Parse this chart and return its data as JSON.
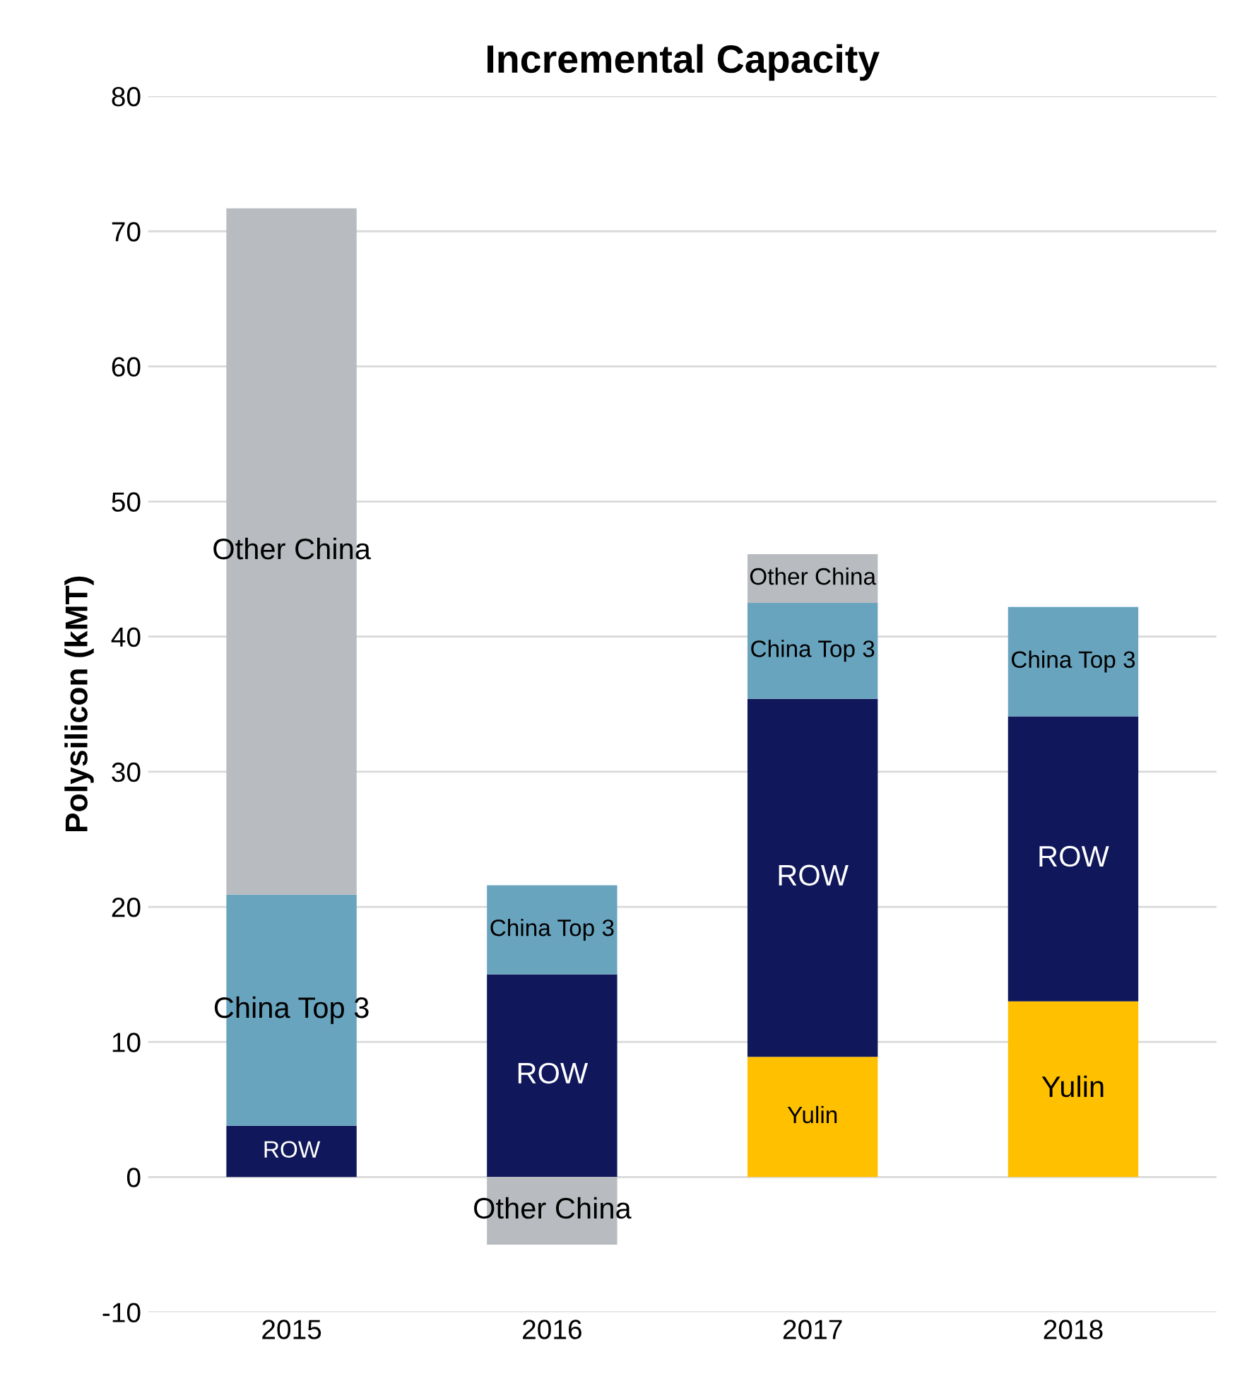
{
  "chart_data": {
    "type": "bar",
    "stacked": true,
    "title": "Incremental Capacity",
    "ylabel": "Polysilicon (kMT)",
    "categories": [
      "2015",
      "2016",
      "2017",
      "2018"
    ],
    "series": [
      {
        "name": "Yulin",
        "color": "#ffc000",
        "values": [
          null,
          null,
          8.9,
          13.0
        ]
      },
      {
        "name": "ROW",
        "color": "#10175a",
        "values": [
          3.8,
          15.0,
          26.5,
          21.1
        ]
      },
      {
        "name": "China Top 3",
        "color": "#69a4bf",
        "values": [
          17.1,
          6.6,
          7.1,
          8.1
        ]
      },
      {
        "name": "Other China",
        "color": "#b8bcc0",
        "values": [
          50.8,
          -5.0,
          3.6,
          null
        ]
      }
    ],
    "ylim": [
      -10,
      80
    ],
    "yticks": [
      -10,
      0,
      10,
      20,
      30,
      40,
      50,
      60,
      70,
      80
    ],
    "grid": "y",
    "legend": false
  }
}
